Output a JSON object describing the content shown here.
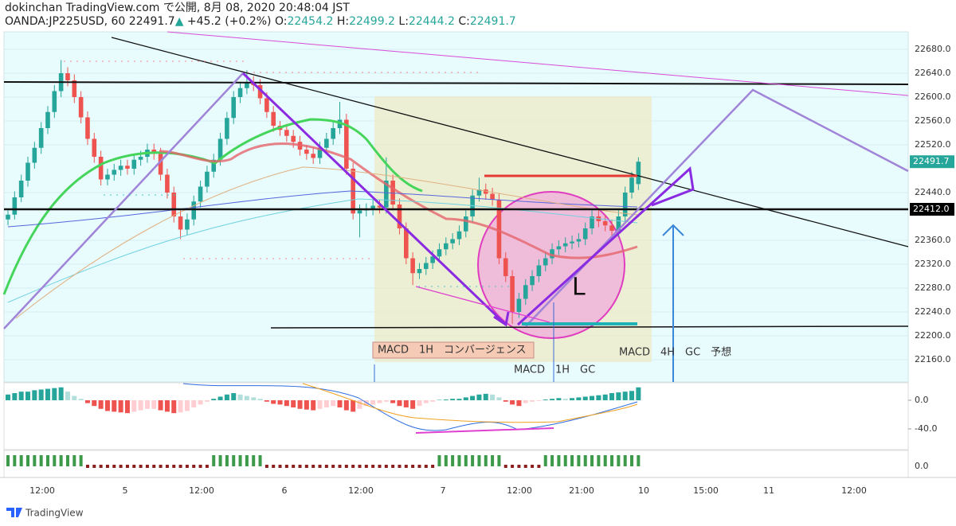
{
  "header": {
    "title": "dokinchan TradingView.com で公開, 8月 08, 2020 20:48:04 JST",
    "symbol": "OANDA:JP225USD, 60",
    "last": "22491.7",
    "arrow": "▲",
    "change": "+45.2 (+0.2%)",
    "open_label": "O:",
    "open": "22454.2",
    "high_label": "H:",
    "high": "22499.2",
    "low_label": "L:",
    "low": "22444.2",
    "close_label": "C:",
    "close": "22491.7"
  },
  "chart_data": {
    "type": "candlestick",
    "up_color": "#26a69a",
    "down_color": "#ef5350",
    "ylim": [
      22122.7,
      22709.3
    ],
    "yticks": [
      {
        "value": 22160,
        "label": "22160.0"
      },
      {
        "value": 22200,
        "label": "22200.0"
      },
      {
        "value": 22240,
        "label": "22240.0"
      },
      {
        "value": 22280,
        "label": "22280.0"
      },
      {
        "value": 22320,
        "label": "22320.0"
      },
      {
        "value": 22360,
        "label": "22360.0"
      },
      {
        "value": 22440,
        "label": "22440.0"
      },
      {
        "value": 22520,
        "label": "22520.0"
      },
      {
        "value": 22560,
        "label": "22560.0"
      },
      {
        "value": 22600,
        "label": "22600.0"
      },
      {
        "value": 22640,
        "label": "22640.0"
      },
      {
        "value": 22680,
        "label": "22680.0"
      }
    ],
    "price_labels": [
      {
        "value": 22491.7,
        "label": "22491.7",
        "color": "#26a69a"
      },
      {
        "value": 22412.0,
        "label": "22412.0",
        "color": "#000000"
      }
    ],
    "xlabels": [
      "12:00",
      "5",
      "12:00",
      "6",
      "12:00",
      "7",
      "12:00",
      "21:00",
      "10",
      "15:00",
      "11",
      "12:00"
    ],
    "candles": [
      [
        22395,
        22410,
        22385,
        22403
      ],
      [
        22403,
        22442,
        22395,
        22432
      ],
      [
        22432,
        22470,
        22424,
        22460
      ],
      [
        22460,
        22500,
        22450,
        22490
      ],
      [
        22490,
        22525,
        22480,
        22515
      ],
      [
        22515,
        22558,
        22505,
        22548
      ],
      [
        22548,
        22585,
        22538,
        22575
      ],
      [
        22575,
        22620,
        22565,
        22610
      ],
      [
        22610,
        22662,
        22600,
        22640
      ],
      [
        22640,
        22650,
        22618,
        22628
      ],
      [
        22628,
        22638,
        22590,
        22600
      ],
      [
        22600,
        22610,
        22556,
        22566
      ],
      [
        22566,
        22576,
        22520,
        22530
      ],
      [
        22530,
        22540,
        22490,
        22500
      ],
      [
        22500,
        22510,
        22452,
        22462
      ],
      [
        22462,
        22480,
        22452,
        22470
      ],
      [
        22470,
        22488,
        22460,
        22478
      ],
      [
        22478,
        22495,
        22468,
        22485
      ],
      [
        22485,
        22495,
        22470,
        22480
      ],
      [
        22480,
        22505,
        22470,
        22495
      ],
      [
        22495,
        22510,
        22485,
        22500
      ],
      [
        22500,
        22522,
        22490,
        22512
      ],
      [
        22512,
        22522,
        22495,
        22505
      ],
      [
        22505,
        22515,
        22460,
        22470
      ],
      [
        22470,
        22480,
        22430,
        22440
      ],
      [
        22440,
        22450,
        22390,
        22400
      ],
      [
        22400,
        22410,
        22362,
        22378
      ],
      [
        22378,
        22405,
        22368,
        22395
      ],
      [
        22395,
        22435,
        22385,
        22425
      ],
      [
        22425,
        22460,
        22415,
        22450
      ],
      [
        22450,
        22485,
        22440,
        22475
      ],
      [
        22475,
        22505,
        22465,
        22495
      ],
      [
        22495,
        22540,
        22485,
        22530
      ],
      [
        22530,
        22575,
        22520,
        22565
      ],
      [
        22565,
        22610,
        22555,
        22600
      ],
      [
        22600,
        22625,
        22590,
        22615
      ],
      [
        22615,
        22645,
        22605,
        22625
      ],
      [
        22625,
        22635,
        22610,
        22620
      ],
      [
        22620,
        22630,
        22588,
        22598
      ],
      [
        22598,
        22608,
        22565,
        22575
      ],
      [
        22575,
        22585,
        22542,
        22552
      ],
      [
        22552,
        22560,
        22535,
        22545
      ],
      [
        22545,
        22555,
        22525,
        22535
      ],
      [
        22535,
        22545,
        22515,
        22525
      ],
      [
        22525,
        22535,
        22502,
        22512
      ],
      [
        22512,
        22520,
        22495,
        22505
      ],
      [
        22505,
        22515,
        22488,
        22498
      ],
      [
        22498,
        22525,
        22488,
        22515
      ],
      [
        22515,
        22540,
        22505,
        22530
      ],
      [
        22530,
        22558,
        22520,
        22548
      ],
      [
        22548,
        22592,
        22538,
        22562
      ],
      [
        22562,
        22572,
        22470,
        22480
      ],
      [
        22480,
        22490,
        22395,
        22405
      ],
      [
        22405,
        22420,
        22365,
        22410
      ],
      [
        22410,
        22422,
        22400,
        22412
      ],
      [
        22412,
        22428,
        22402,
        22418
      ],
      [
        22418,
        22428,
        22405,
        22415
      ],
      [
        22415,
        22499,
        22405,
        22460
      ],
      [
        22460,
        22470,
        22410,
        22420
      ],
      [
        22420,
        22430,
        22370,
        22380
      ],
      [
        22380,
        22390,
        22320,
        22330
      ],
      [
        22330,
        22340,
        22285,
        22305
      ],
      [
        22305,
        22322,
        22295,
        22312
      ],
      [
        22312,
        22332,
        22302,
        22322
      ],
      [
        22322,
        22343,
        22312,
        22333
      ],
      [
        22333,
        22355,
        22323,
        22345
      ],
      [
        22345,
        22365,
        22335,
        22355
      ],
      [
        22355,
        22372,
        22345,
        22362
      ],
      [
        22362,
        22385,
        22352,
        22375
      ],
      [
        22375,
        22410,
        22365,
        22400
      ],
      [
        22400,
        22445,
        22390,
        22435
      ],
      [
        22435,
        22465,
        22425,
        22445
      ],
      [
        22445,
        22455,
        22428,
        22438
      ],
      [
        22438,
        22448,
        22418,
        22428
      ],
      [
        22428,
        22438,
        22320,
        22330
      ],
      [
        22330,
        22340,
        22290,
        22300
      ],
      [
        22300,
        22310,
        22220,
        22240
      ],
      [
        22240,
        22272,
        22230,
        22262
      ],
      [
        22262,
        22295,
        22252,
        22285
      ],
      [
        22285,
        22310,
        22275,
        22300
      ],
      [
        22300,
        22328,
        22290,
        22318
      ],
      [
        22318,
        22340,
        22308,
        22330
      ],
      [
        22330,
        22355,
        22320,
        22345
      ],
      [
        22345,
        22360,
        22335,
        22350
      ],
      [
        22350,
        22365,
        22340,
        22355
      ],
      [
        22355,
        22368,
        22345,
        22358
      ],
      [
        22358,
        22372,
        22348,
        22362
      ],
      [
        22362,
        22390,
        22352,
        22380
      ],
      [
        22380,
        22410,
        22370,
        22400
      ],
      [
        22400,
        22410,
        22382,
        22392
      ],
      [
        22392,
        22402,
        22375,
        22385
      ],
      [
        22385,
        22395,
        22366,
        22376
      ],
      [
        22376,
        22410,
        22366,
        22400
      ],
      [
        22400,
        22450,
        22390,
        22440
      ],
      [
        22440,
        22475,
        22430,
        22465
      ],
      [
        22454.2,
        22499.2,
        22444.2,
        22491.7
      ]
    ],
    "macd": {
      "ylim": [
        -68.9,
        23.3
      ],
      "yticks": [
        {
          "value": 0,
          "label": "0.0"
        },
        {
          "value": -40,
          "label": "-40.0"
        }
      ],
      "histogram": [
        8,
        10,
        12,
        12,
        14,
        15,
        16,
        17,
        18,
        12,
        6,
        2,
        -4,
        -8,
        -12,
        -15,
        -16,
        -17,
        -18,
        -16,
        -14,
        -12,
        -12,
        -14,
        -16,
        -18,
        -17,
        -15,
        -10,
        -6,
        -2,
        2,
        5,
        8,
        10,
        8,
        6,
        4,
        2,
        -2,
        -5,
        -6,
        -8,
        -10,
        -12,
        -13,
        -14,
        -12,
        -10,
        -8,
        -10,
        -14,
        -16,
        -12,
        -8,
        -6,
        -4,
        -2,
        -4,
        -8,
        -10,
        -12,
        -8,
        -4,
        -2,
        0.5,
        1,
        2,
        2,
        4,
        6,
        8,
        9,
        8,
        4,
        -2,
        -6,
        -8,
        -4,
        -2,
        -1,
        1,
        2,
        3,
        2,
        3,
        4,
        5,
        6,
        7,
        8,
        10,
        11,
        12,
        13,
        18
      ]
    },
    "osc": {
      "yticks": [
        {
          "value": 0,
          "label": "0.0"
        }
      ]
    },
    "annotations": {
      "convergence": "MACD　1H　コンバージェンス",
      "gc_1h": "MACD　1H　GC",
      "gc_4h": "MACD　4H　GC　予想",
      "letter": "L"
    },
    "footer": "TradingView"
  }
}
